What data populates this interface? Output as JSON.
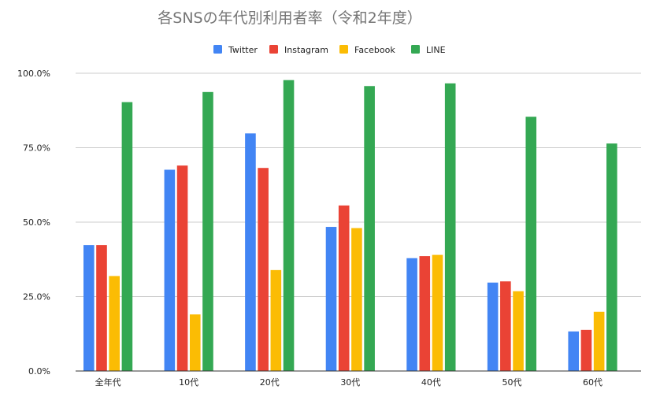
{
  "chart_data": {
    "type": "bar",
    "title": "各SNSの年代別利用者率（令和2年度）",
    "categories": [
      "全年代",
      "10代",
      "20代",
      "30代",
      "40代",
      "50代",
      "60代"
    ],
    "series": [
      {
        "name": "Twitter",
        "color": "#4285f4",
        "values": [
          42.3,
          67.6,
          79.8,
          48.4,
          37.9,
          29.7,
          13.3
        ]
      },
      {
        "name": "Instagram",
        "color": "#ea4335",
        "values": [
          42.3,
          69.0,
          68.2,
          55.6,
          38.6,
          30.1,
          13.8
        ]
      },
      {
        "name": "Facebook",
        "color": "#fbbc04",
        "values": [
          31.9,
          19.0,
          33.9,
          48.0,
          39.0,
          26.8,
          19.9
        ]
      },
      {
        "name": "LINE",
        "color": "#34a853",
        "values": [
          90.3,
          93.7,
          97.7,
          95.7,
          96.6,
          85.4,
          76.4
        ]
      }
    ],
    "yticks": [
      "0.0%",
      "25.0%",
      "50.0%",
      "75.0%",
      "100.0%"
    ],
    "ylim": [
      0,
      100
    ],
    "xlabel": "",
    "ylabel": "",
    "legend": "top-center",
    "grid": true
  }
}
